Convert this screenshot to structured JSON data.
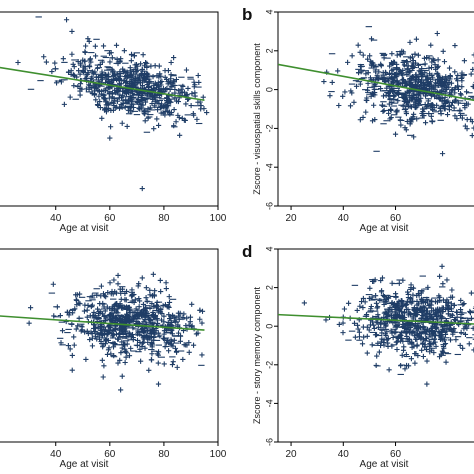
{
  "chart_data": [
    {
      "type": "scatter",
      "panel_label": "",
      "xlabel": "Age at visit",
      "ylabel": "",
      "xlim": [
        12,
        100
      ],
      "ylim": [
        -6,
        4
      ],
      "x_ticks": [
        "40",
        "60",
        "80",
        "100"
      ],
      "y_ticks": [],
      "fit_line": {
        "x": [
          12,
          95
        ],
        "y": [
          1.3,
          -0.55
        ]
      },
      "point_cloud": {
        "x_range": [
          20,
          97
        ],
        "y_center_at": [
          [
            20,
            1.2
          ],
          [
            50,
            0.6
          ],
          [
            70,
            0.1
          ],
          [
            90,
            -0.45
          ]
        ],
        "y_spread": 1.05,
        "outliers": [
          [
            44,
            3.6
          ],
          [
            46,
            3.0
          ],
          [
            72,
            -5.1
          ],
          [
            60,
            -2.5
          ]
        ]
      },
      "grid": false,
      "legend": "none"
    },
    {
      "type": "scatter",
      "panel_label": "b",
      "xlabel": "Age at visit",
      "ylabel": "Zscore - visuospatial skills component",
      "xlim": [
        15,
        100
      ],
      "ylim": [
        -6,
        4
      ],
      "x_ticks": [
        "20",
        "40",
        "60"
      ],
      "y_ticks": [
        "4",
        "2",
        "0",
        "-2",
        "-4",
        "-6"
      ],
      "fit_line": {
        "x": [
          15,
          100
        ],
        "y": [
          1.3,
          -0.8
        ]
      },
      "point_cloud": {
        "x_range": [
          18,
          100
        ],
        "y_center_at": [
          [
            20,
            1.2
          ],
          [
            50,
            0.4
          ],
          [
            70,
            0.0
          ],
          [
            95,
            -0.4
          ]
        ],
        "y_spread": 1.25,
        "outliers": [
          [
            68,
            2.6
          ],
          [
            78,
            -3.3
          ],
          [
            60,
            -2.3
          ]
        ]
      },
      "grid": false,
      "legend": "none"
    },
    {
      "type": "scatter",
      "panel_label": "",
      "xlabel": "Age at visit",
      "ylabel": "",
      "xlim": [
        12,
        100
      ],
      "ylim": [
        -6,
        4
      ],
      "x_ticks": [
        "40",
        "60",
        "80",
        "100"
      ],
      "y_ticks": [],
      "fit_line": {
        "x": [
          12,
          95
        ],
        "y": [
          0.6,
          -0.2
        ]
      },
      "point_cloud": {
        "x_range": [
          20,
          96
        ],
        "y_center_at": [
          [
            20,
            0.6
          ],
          [
            50,
            0.3
          ],
          [
            70,
            0.1
          ],
          [
            90,
            -0.1
          ]
        ],
        "y_spread": 1.2,
        "outliers": [
          [
            72,
            2.5
          ],
          [
            64,
            -3.3
          ],
          [
            78,
            -3.0
          ]
        ]
      },
      "grid": false,
      "legend": "none"
    },
    {
      "type": "scatter",
      "panel_label": "d",
      "xlabel": "Age at visit",
      "ylabel": "Zscore - story memory component",
      "xlim": [
        15,
        100
      ],
      "ylim": [
        -6,
        4
      ],
      "x_ticks": [
        "20",
        "40",
        "60"
      ],
      "y_ticks": [
        "4",
        "2",
        "0",
        "-2",
        "-4",
        "-6"
      ],
      "fit_line": {
        "x": [
          15,
          100
        ],
        "y": [
          0.6,
          0.05
        ]
      },
      "point_cloud": {
        "x_range": [
          18,
          100
        ],
        "y_center_at": [
          [
            20,
            0.6
          ],
          [
            50,
            0.4
          ],
          [
            70,
            0.2
          ],
          [
            95,
            0.1
          ]
        ],
        "y_spread": 1.15,
        "outliers": [
          [
            55,
            2.5
          ],
          [
            62,
            -2.5
          ],
          [
            72,
            -3.0
          ]
        ]
      },
      "grid": false,
      "legend": "none"
    }
  ],
  "colors": {
    "points": "#1f3d66",
    "fit_line": "#3f8f2f",
    "frame": "#000000"
  }
}
